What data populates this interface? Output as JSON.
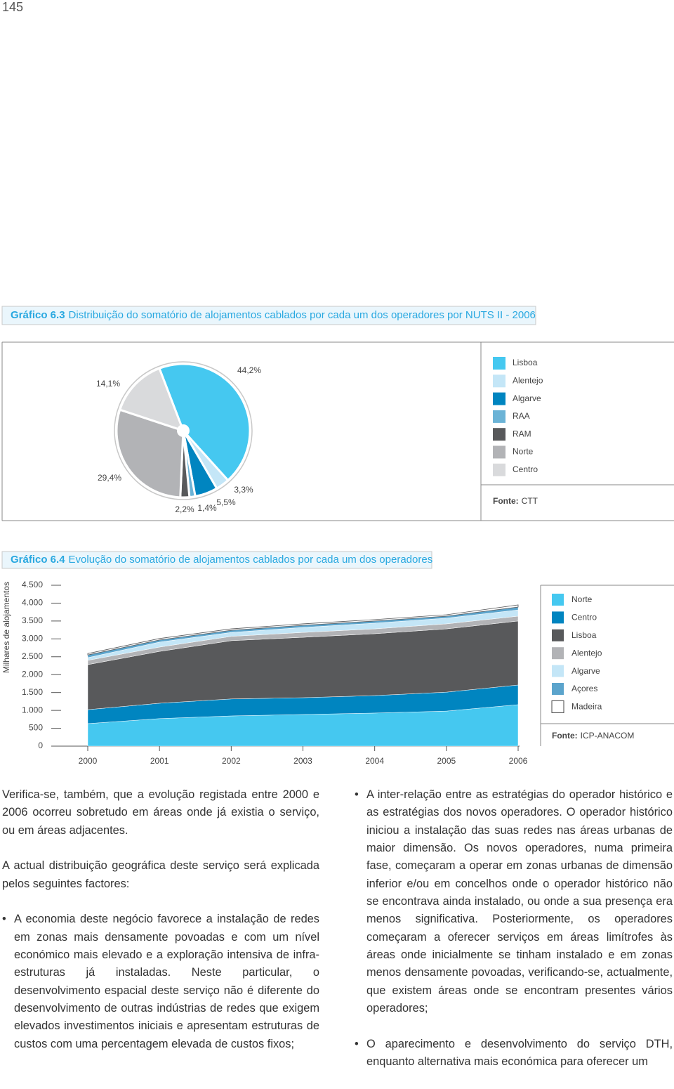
{
  "page_number": "145",
  "chart_data": [
    {
      "type": "pie",
      "title_label": "Gráfico 6.3",
      "title": "Distribuição do somatório de alojamentos cablados por cada um dos operadores por NUTS II - 2006",
      "categories": [
        "Lisboa",
        "Alentejo",
        "Algarve",
        "RAA",
        "RAM",
        "Norte",
        "Centro"
      ],
      "values": [
        44.2,
        3.3,
        5.5,
        1.4,
        2.2,
        29.4,
        14.1
      ],
      "value_labels": [
        "44,2%",
        "3,3%",
        "5,5%",
        "1,4%",
        "2,2%",
        "29,4%",
        "14,1%"
      ],
      "colors": [
        "#45c8f0",
        "#c4e6f7",
        "#0085c0",
        "#6bb3d6",
        "#58595b",
        "#b2b3b6",
        "#d9dadc"
      ],
      "source_label": "Fonte:",
      "source": "CTT"
    },
    {
      "type": "area",
      "stacked": true,
      "title_label": "Gráfico 6.4",
      "title": "Evolução do somatório de alojamentos cablados por cada um dos operadores",
      "y_label": "Milhares de alojamentos",
      "categories": [
        "2000",
        "2001",
        "2002",
        "2003",
        "2004",
        "2005",
        "2006"
      ],
      "ylim": [
        0,
        4500
      ],
      "yticks": [
        0,
        500,
        {
          "value": 1000,
          "label": "1.000"
        },
        {
          "value": 1500,
          "label": "1.500"
        },
        {
          "value": 2000,
          "label": "2.000"
        },
        {
          "value": 2500,
          "label": "2.500"
        },
        {
          "value": 3000,
          "label": "3.000"
        },
        {
          "value": 3500,
          "label": "3.500"
        },
        {
          "value": 4000,
          "label": "4.000"
        },
        {
          "value": 4500,
          "label": "4.500"
        }
      ],
      "series": [
        {
          "name": "Norte",
          "color": "#45c8f0",
          "values": [
            630,
            770,
            845,
            885,
            925,
            980,
            1160
          ]
        },
        {
          "name": "Centro",
          "color": "#0085c0",
          "values": [
            390,
            430,
            475,
            470,
            490,
            530,
            550
          ]
        },
        {
          "name": "Lisboa",
          "color": "#58595b",
          "values": [
            1260,
            1450,
            1630,
            1690,
            1730,
            1770,
            1790
          ]
        },
        {
          "name": "Alentejo",
          "color": "#b2b3b6",
          "values": [
            120,
            120,
            120,
            135,
            135,
            140,
            135
          ]
        },
        {
          "name": "Algarve",
          "color": "#c4e6f7",
          "values": [
            75,
            140,
            110,
            140,
            160,
            160,
            175
          ]
        },
        {
          "name": "Açores",
          "color": "#5ba4cc",
          "values": [
            75,
            60,
            60,
            60,
            60,
            55,
            80
          ]
        },
        {
          "name": "Madeira",
          "color": "#ffffff",
          "values": [
            40,
            40,
            40,
            40,
            40,
            40,
            60
          ]
        }
      ],
      "source_label": "Fonte:",
      "source": "ICP-ANACOM"
    }
  ],
  "left_column": {
    "paragraphs": [
      "Verifica-se, também, que a evolução registada entre 2000 e 2006 ocorreu sobretudo em áreas onde já existia o serviço, ou em áreas adjacentes.",
      "A actual distribuição geográfica deste serviço será explicada pelos seguintes factores:"
    ],
    "bullets": [
      "A economia deste negócio favorece a instalação de redes em zonas mais densamente povoadas e com um nível económico mais elevado e a exploração intensiva de infra-estruturas já instaladas. Neste particular, o desenvolvimento espacial deste serviço não é diferente do desenvolvimento de outras indústrias de redes que exigem elevados investimentos iniciais e apresentam estruturas de custos com uma percentagem elevada de custos fixos;"
    ]
  },
  "right_column": {
    "bullets": [
      "A inter-relação entre as estratégias do operador histórico e as estratégias dos novos operadores. O operador histórico iniciou a instalação das suas redes nas áreas urbanas de maior dimensão. Os novos operadores, numa primeira fase, começaram a operar em zonas urbanas de dimensão inferior e/ou em concelhos onde o operador histórico não se encontrava ainda instalado, ou onde a sua presença era menos significativa. Posteriormente, os operadores começaram a oferecer serviços em áreas limítrofes às áreas onde inicialmente se tinham instalado e em zonas menos densamente povoadas, verificando-se, actualmente, que existem áreas onde se encontram presentes vários operadores;",
      "O aparecimento e desenvolvimento do serviço DTH, enquanto alternativa mais económica para oferecer um"
    ]
  }
}
